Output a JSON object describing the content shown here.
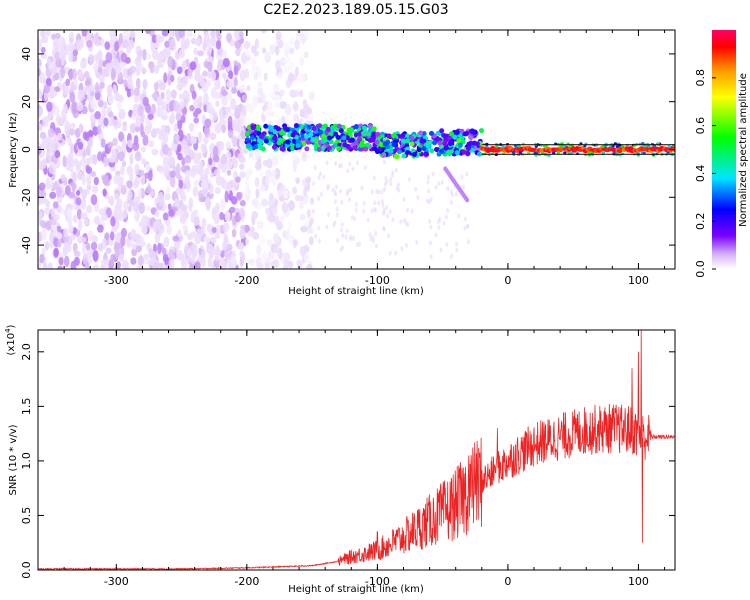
{
  "figure_title": "C2E2.2023.189.05.15.G03",
  "chart_data": [
    {
      "type": "heatmap",
      "title": "",
      "xlabel": "Height of straight line (km)",
      "ylabel": "Frequency (Hz)",
      "xlim": [
        -360,
        128
      ],
      "ylim": [
        -50,
        50
      ],
      "xticks": [
        -300,
        -200,
        -100,
        0,
        100
      ],
      "xtick_labels": [
        "-300",
        "-200",
        "-100",
        "0",
        "100"
      ],
      "yticks": [
        -40,
        -20,
        0,
        20,
        40
      ],
      "ytick_labels": [
        "-40",
        "-20",
        "0",
        "20",
        "40"
      ],
      "colorbar": {
        "label": "Normalized spectral amplitude",
        "range": [
          0,
          1
        ],
        "ticks": [
          0.0,
          0.2,
          0.4,
          0.6,
          0.8
        ],
        "tick_labels": [
          "0.0",
          "0.2",
          "0.4",
          "0.6",
          "0.8"
        ],
        "colormap": [
          "#ffffff",
          "#d6b4f5",
          "#7a00ff",
          "#0000ff",
          "#00e5ff",
          "#00ff00",
          "#ffff00",
          "#ff9900",
          "#ff0000",
          "#ff0066"
        ]
      },
      "regions": [
        {
          "x_range": [
            -360,
            -200
          ],
          "freq_range": [
            -50,
            50
          ],
          "amplitude": 0.12,
          "note_color": "#7a00ff"
        },
        {
          "x_range": [
            -200,
            -150
          ],
          "freq_range": [
            -50,
            50
          ],
          "amplitude": 0.05,
          "note_color": "#d6b4f5"
        },
        {
          "x_range": [
            -200,
            -20
          ],
          "freq_center": 2,
          "freq_width": 10,
          "amplitude": 0.35
        },
        {
          "x_range": [
            -20,
            128
          ],
          "freq_center": 0,
          "freq_width": 3,
          "amplitude": 0.95
        }
      ],
      "signal_line": {
        "x_range": [
          -20,
          128
        ],
        "frequency": 0,
        "amplitude": 1.0
      }
    },
    {
      "type": "line",
      "title": "",
      "xlabel": "Height of straight line (km)",
      "ylabel": "SNR (10 * v/v)",
      "y_multiplier_label": "(x10",
      "y_multiplier_exp": "4",
      "xlim": [
        -360,
        128
      ],
      "ylim": [
        0,
        2.2
      ],
      "xticks": [
        -300,
        -200,
        -100,
        0,
        100
      ],
      "xtick_labels": [
        "-300",
        "-200",
        "-100",
        "0",
        "100"
      ],
      "yticks": [
        0,
        0.5,
        1.0,
        1.5,
        2.0
      ],
      "ytick_labels": [
        "0.0",
        "0.5",
        "1.0",
        "1.5",
        "2.0"
      ],
      "series": [
        {
          "color": "#ee2222",
          "envelope_x": [
            -360,
            -250,
            -200,
            -150,
            -130,
            -120,
            -100,
            -80,
            -60,
            -40,
            -30,
            -20,
            -10,
            0,
            20,
            40,
            60,
            80,
            95,
            100,
            105,
            110,
            128
          ],
          "envelope_y": [
            0.01,
            0.01,
            0.02,
            0.04,
            0.08,
            0.12,
            0.18,
            0.3,
            0.45,
            0.6,
            0.72,
            0.82,
            0.9,
            1.0,
            1.15,
            1.22,
            1.28,
            1.3,
            1.28,
            1.25,
            1.22,
            1.22,
            1.22
          ],
          "spikes": [
            {
              "x": -100,
              "y": 0.35
            },
            {
              "x": -50,
              "y": 0.55
            },
            {
              "x": -30,
              "y": 1.05
            },
            {
              "x": -25,
              "y": 0.9
            },
            {
              "x": -10,
              "y": 0.95
            },
            {
              "x": -8,
              "y": 1.3
            },
            {
              "x": 95,
              "y": 1.85
            },
            {
              "x": 100,
              "y": 2.0
            },
            {
              "x": 102,
              "y": 2.2
            },
            {
              "x": 103,
              "y": 0.25
            }
          ]
        }
      ]
    }
  ]
}
